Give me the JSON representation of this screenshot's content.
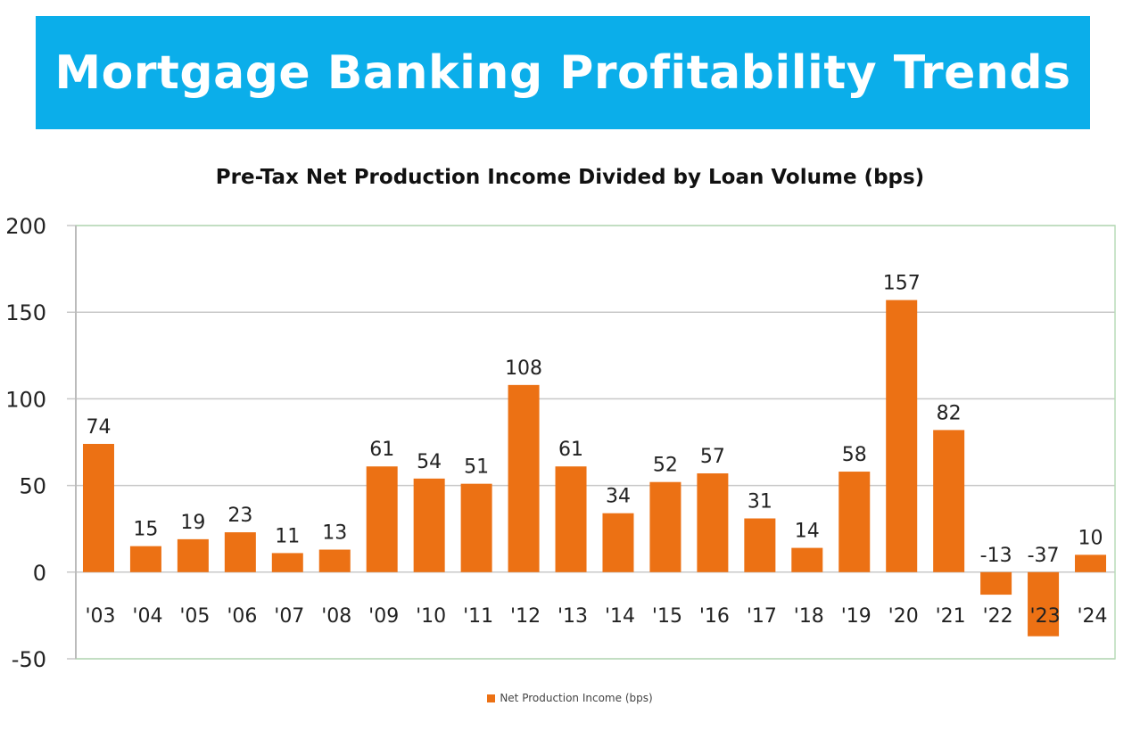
{
  "header": {
    "title": "Mortgage Banking Profitability Trends"
  },
  "colors": {
    "banner": "#0baeea",
    "bar": "#ec7114"
  },
  "chart_data": {
    "type": "bar",
    "title": "Pre-Tax Net Production Income Divided by Loan Volume (bps)",
    "categories": [
      "'03",
      "'04",
      "'05",
      "'06",
      "'07",
      "'08",
      "'09",
      "'10",
      "'11",
      "'12",
      "'13",
      "'14",
      "'15",
      "'16",
      "'17",
      "'18",
      "'19",
      "'20",
      "'21",
      "'22",
      "'23",
      "'24"
    ],
    "series": [
      {
        "name": "Net Production Income (bps)",
        "values": [
          74,
          15,
          19,
          23,
          11,
          13,
          61,
          54,
          51,
          108,
          61,
          34,
          52,
          57,
          31,
          14,
          58,
          157,
          82,
          -13,
          -37,
          10
        ]
      }
    ],
    "ylim": [
      -50,
      200
    ],
    "yticks": [
      200,
      150,
      100,
      50,
      0,
      -50
    ],
    "grid": true,
    "data_labels": true,
    "legend": "bottom"
  }
}
